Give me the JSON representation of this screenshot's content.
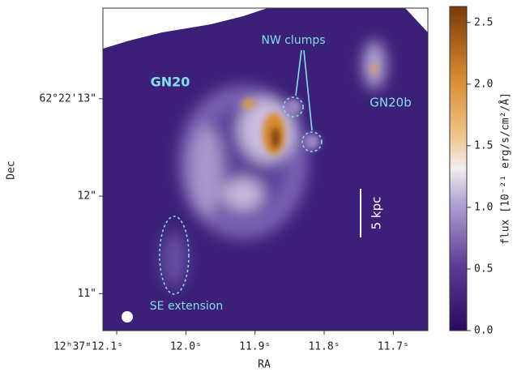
{
  "chart_data": {
    "type": "image",
    "xlabel": "RA",
    "ylabel": "Dec",
    "xlim": [
      12.12,
      11.65
    ],
    "xticks": [
      {
        "value": 12.1,
        "label": "12ʰ37ᵐ12.1ˢ"
      },
      {
        "value": 12.0,
        "label": "12.0ˢ"
      },
      {
        "value": 11.9,
        "label": "11.9ˢ"
      },
      {
        "value": 11.8,
        "label": "11.8ˢ"
      },
      {
        "value": 11.7,
        "label": "11.7ˢ"
      }
    ],
    "ylim": [
      10.62,
      13.93
    ],
    "yticks": [
      {
        "value": 13,
        "label": "62°22'13\""
      },
      {
        "value": 12,
        "label": "12\""
      },
      {
        "value": 11,
        "label": "11\""
      }
    ],
    "colorbar": {
      "label": "flux [10⁻²¹ erg/s/cm²/Å]",
      "lim": [
        0,
        2.63
      ],
      "ticks": [
        {
          "value": 0,
          "label": "0.0"
        },
        {
          "value": 0.5,
          "label": "0.5"
        },
        {
          "value": 1,
          "label": "1.0"
        },
        {
          "value": 1.5,
          "label": "1.5"
        },
        {
          "value": 2,
          "label": "2.0"
        },
        {
          "value": 2.5,
          "label": "2.5"
        }
      ]
    },
    "annotations": [
      "GN20",
      "GN20b",
      "NW clumps",
      "SE extension",
      "5 kpc"
    ]
  }
}
